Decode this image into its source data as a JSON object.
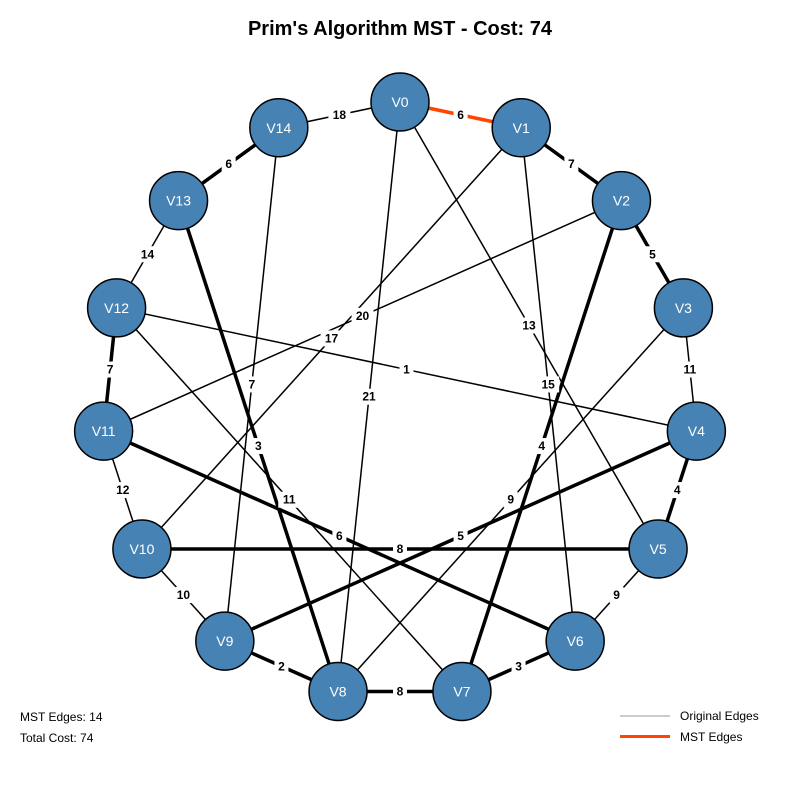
{
  "title": "Prim's Algorithm MST - Cost: 74",
  "nodes": [
    "V0",
    "V1",
    "V2",
    "V3",
    "V4",
    "V5",
    "V6",
    "V7",
    "V8",
    "V9",
    "V10",
    "V11",
    "V12",
    "V13",
    "V14"
  ],
  "edges": [
    {
      "u": 0,
      "v": 1,
      "w": "6",
      "style": "mst-orange"
    },
    {
      "u": 1,
      "v": 2,
      "w": "7",
      "style": "bold"
    },
    {
      "u": 2,
      "v": 3,
      "w": "5",
      "style": "bold"
    },
    {
      "u": 3,
      "v": 4,
      "w": "11",
      "style": "thin"
    },
    {
      "u": 4,
      "v": 5,
      "w": "4",
      "style": "bold"
    },
    {
      "u": 5,
      "v": 6,
      "w": "9",
      "style": "thin"
    },
    {
      "u": 6,
      "v": 7,
      "w": "3",
      "style": "bold"
    },
    {
      "u": 7,
      "v": 8,
      "w": "8",
      "style": "bold"
    },
    {
      "u": 8,
      "v": 9,
      "w": "2",
      "style": "bold"
    },
    {
      "u": 9,
      "v": 10,
      "w": "10",
      "style": "thin"
    },
    {
      "u": 10,
      "v": 11,
      "w": "12",
      "style": "thin"
    },
    {
      "u": 11,
      "v": 12,
      "w": "7",
      "style": "bold"
    },
    {
      "u": 12,
      "v": 13,
      "w": "14",
      "style": "thin"
    },
    {
      "u": 13,
      "v": 14,
      "w": "6",
      "style": "bold"
    },
    {
      "u": 14,
      "v": 0,
      "w": "18",
      "style": "thin"
    },
    {
      "u": 0,
      "v": 5,
      "w": "13",
      "style": "thin"
    },
    {
      "u": 0,
      "v": 8,
      "w": "21",
      "style": "thin"
    },
    {
      "u": 1,
      "v": 6,
      "w": "15",
      "style": "thin"
    },
    {
      "u": 1,
      "v": 10,
      "w": "17",
      "style": "thin"
    },
    {
      "u": 2,
      "v": 7,
      "w": "4",
      "style": "bold"
    },
    {
      "u": 2,
      "v": 11,
      "w": "20",
      "style": "thin"
    },
    {
      "u": 3,
      "v": 8,
      "w": "9",
      "style": "thin"
    },
    {
      "u": 4,
      "v": 9,
      "w": "5",
      "style": "bold"
    },
    {
      "u": 4,
      "v": 12,
      "w": "1",
      "style": "thin"
    },
    {
      "u": 5,
      "v": 10,
      "w": "8",
      "style": "bold"
    },
    {
      "u": 6,
      "v": 11,
      "w": "6",
      "style": "bold"
    },
    {
      "u": 7,
      "v": 12,
      "w": "11",
      "style": "thin"
    },
    {
      "u": 8,
      "v": 13,
      "w": "3",
      "style": "bold"
    },
    {
      "u": 9,
      "v": 14,
      "w": "7",
      "style": "thin"
    }
  ],
  "colors": {
    "node_fill": "#4682b4",
    "node_stroke": "#000000",
    "edge": "#000000",
    "mst_edge": "#ff4500",
    "original_edge_legend": "#cccccc"
  },
  "stats": {
    "mst_edges": "MST Edges: 14",
    "total_cost": "Total Cost: 74"
  },
  "legend": {
    "original": "Original Edges",
    "mst": "MST Edges"
  }
}
